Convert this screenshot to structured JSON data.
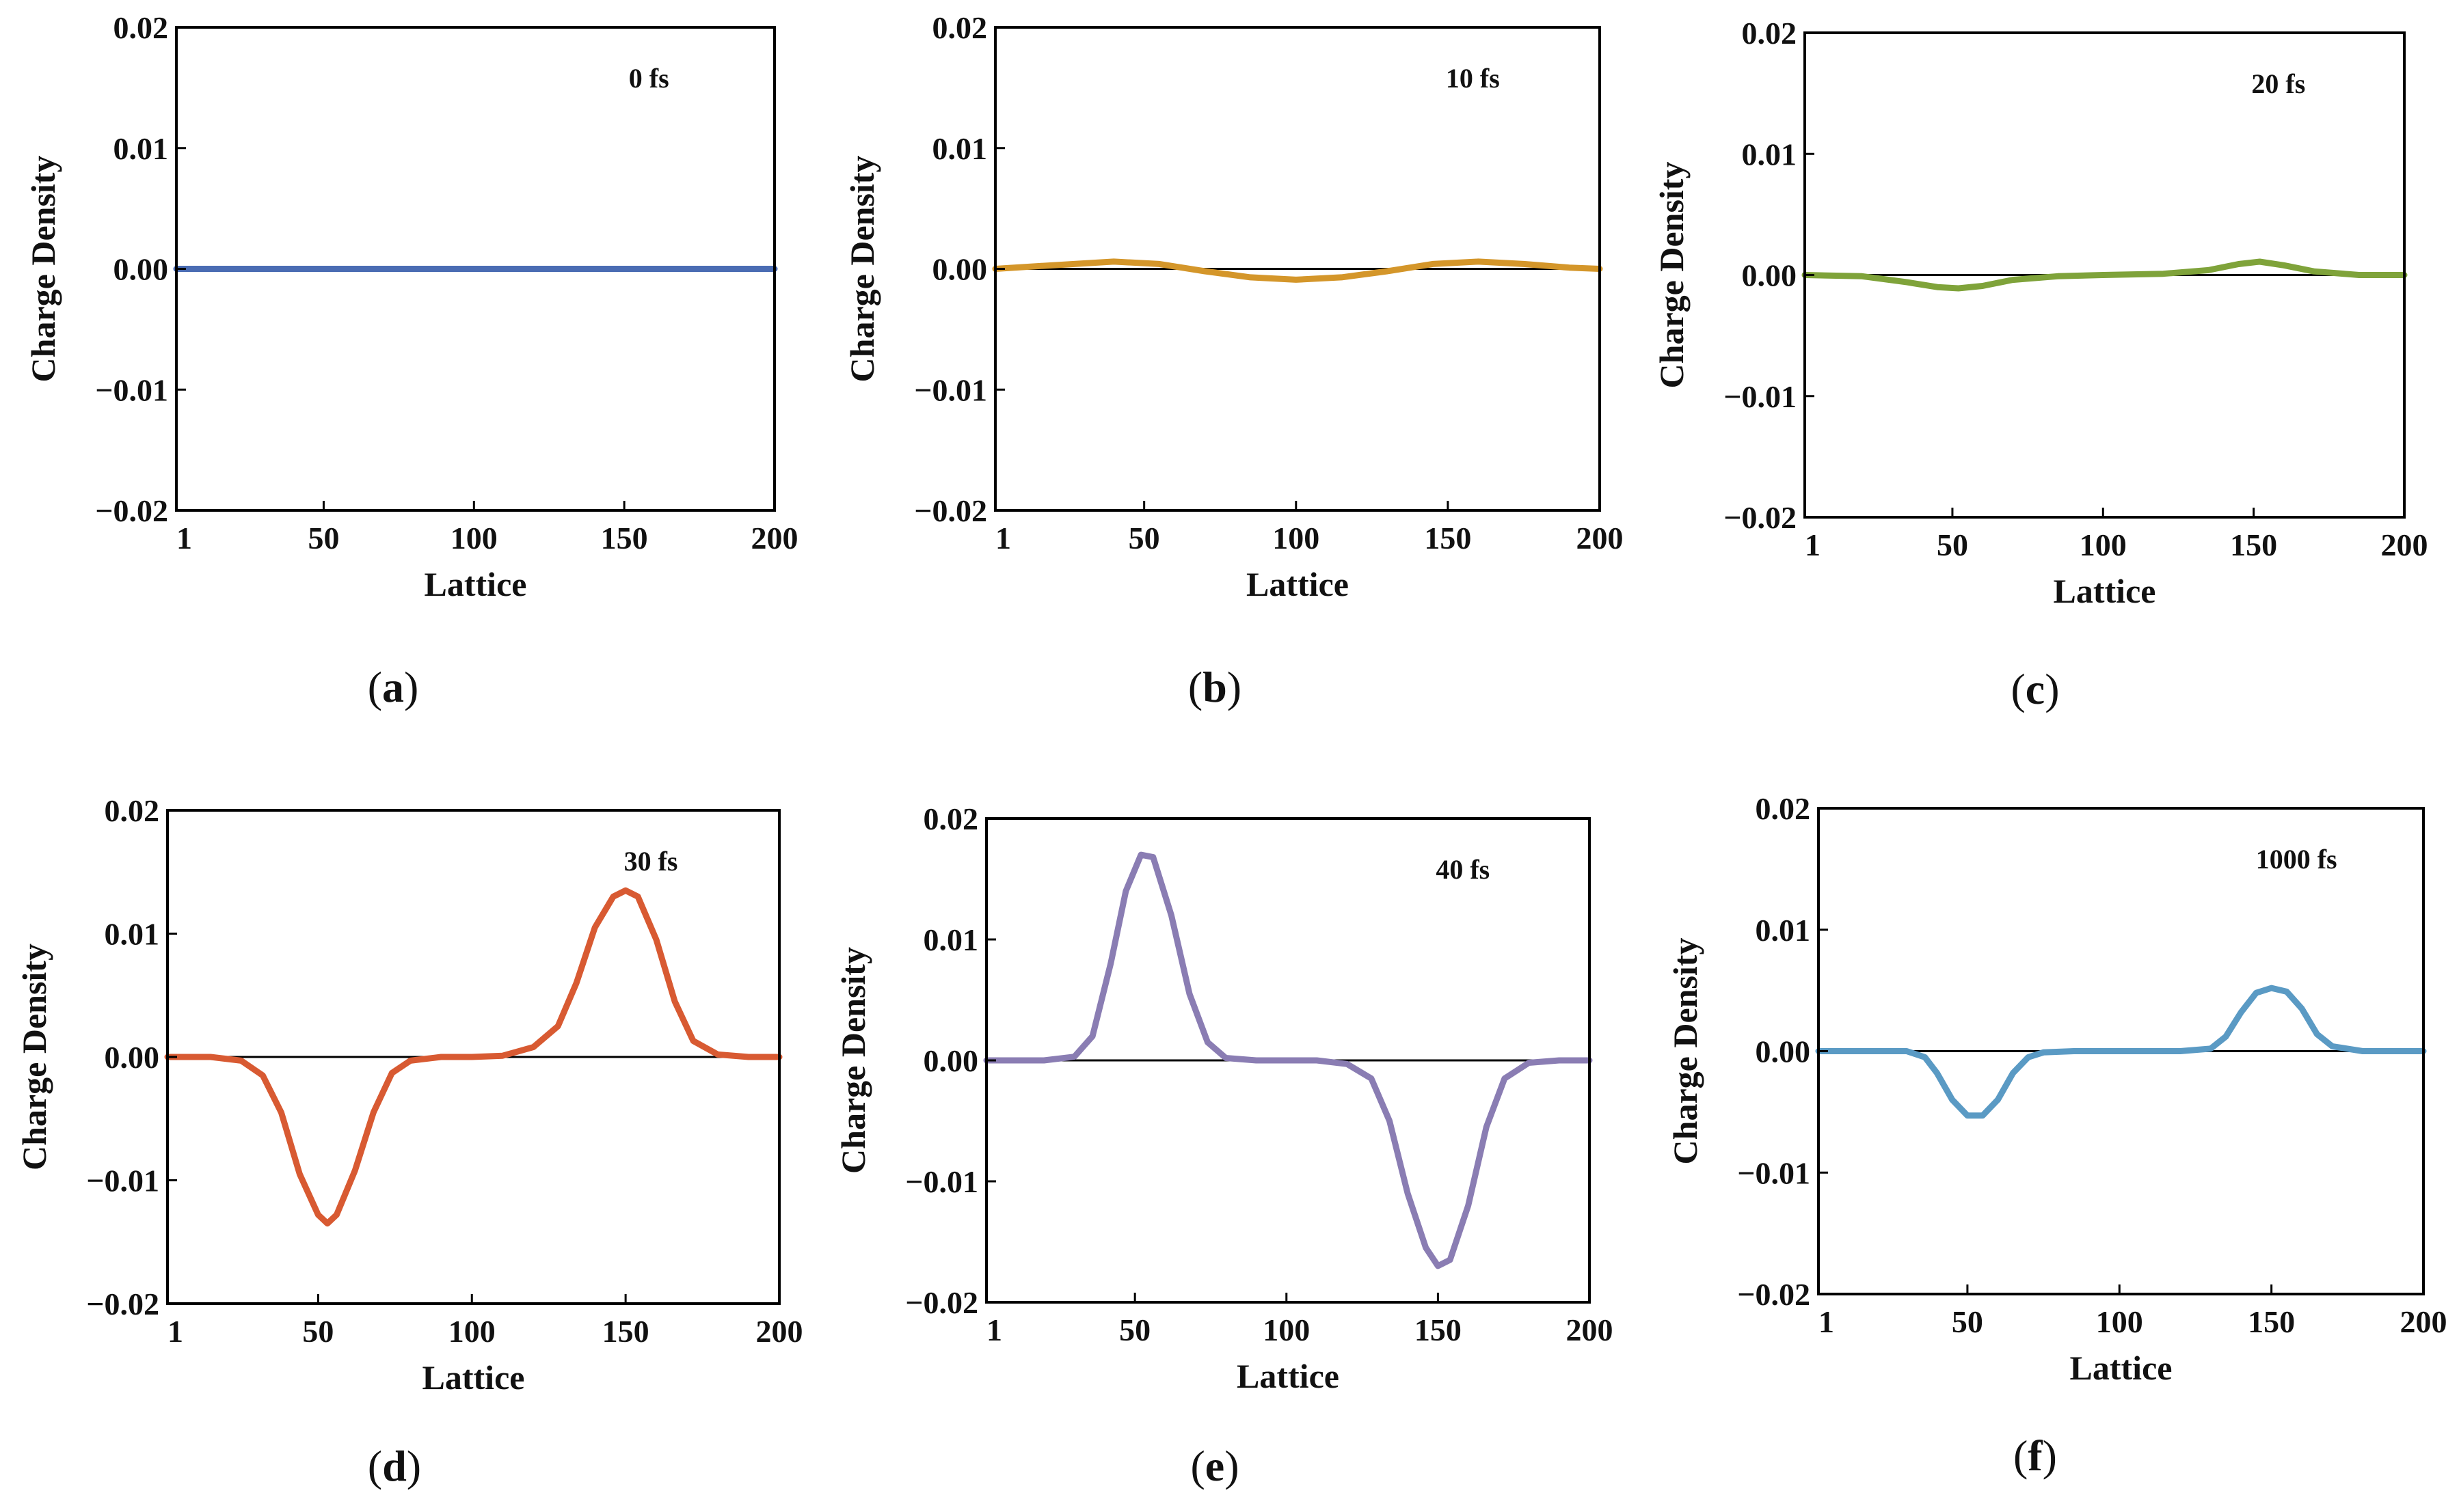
{
  "figure": {
    "ncols": 3,
    "nrows": 2
  },
  "chart_data": [
    {
      "type": "line",
      "panel_label": "(a)",
      "annotation": "0 fs",
      "xlabel": "Lattice",
      "ylabel": "Charge Density",
      "xlim": [
        1,
        200
      ],
      "ylim": [
        -0.02,
        0.02
      ],
      "xticks": [
        "1",
        "50",
        "100",
        "150",
        "200"
      ],
      "yticks": [
        "−0.02",
        "−0.01",
        "0.00",
        "0.01",
        "0.02"
      ],
      "color": "#4a6cb3",
      "series": [
        {
          "name": "0 fs",
          "x": [
            1,
            200
          ],
          "y": [
            0,
            0
          ]
        }
      ],
      "baseline": 0
    },
    {
      "type": "line",
      "panel_label": "(b)",
      "annotation": "10 fs",
      "xlabel": "Lattice",
      "ylabel": "Charge Density",
      "xlim": [
        1,
        200
      ],
      "ylim": [
        -0.02,
        0.02
      ],
      "xticks": [
        "1",
        "50",
        "100",
        "150",
        "200"
      ],
      "yticks": [
        "−0.02",
        "−0.01",
        "0.00",
        "0.01",
        "0.02"
      ],
      "color": "#d4962a",
      "series": [
        {
          "name": "10 fs",
          "x": [
            1,
            20,
            40,
            55,
            70,
            85,
            100,
            115,
            130,
            145,
            160,
            175,
            190,
            200
          ],
          "y": [
            0.0,
            0.0003,
            0.0006,
            0.0004,
            -0.0002,
            -0.0007,
            -0.0009,
            -0.0007,
            -0.0002,
            0.0004,
            0.0006,
            0.0004,
            0.0001,
            0.0
          ]
        }
      ],
      "baseline": 0
    },
    {
      "type": "line",
      "panel_label": "(c)",
      "annotation": "20 fs",
      "xlabel": "Lattice",
      "ylabel": "Charge Density",
      "xlim": [
        1,
        200
      ],
      "ylim": [
        -0.02,
        0.02
      ],
      "xticks": [
        "1",
        "50",
        "100",
        "150",
        "200"
      ],
      "yticks": [
        "−0.02",
        "−0.01",
        "0.00",
        "0.01",
        "0.02"
      ],
      "color": "#7fa33a",
      "series": [
        {
          "name": "20 fs",
          "x": [
            1,
            20,
            35,
            45,
            52,
            60,
            70,
            85,
            100,
            120,
            135,
            145,
            152,
            160,
            170,
            185,
            200
          ],
          "y": [
            0.0,
            -0.0001,
            -0.0006,
            -0.001,
            -0.0011,
            -0.0009,
            -0.0004,
            -0.0001,
            0.0,
            0.0001,
            0.0004,
            0.0009,
            0.0011,
            0.0008,
            0.0003,
            0.0,
            0.0
          ]
        }
      ],
      "baseline": 0
    },
    {
      "type": "line",
      "panel_label": "(d)",
      "annotation": "30 fs",
      "xlabel": "Lattice",
      "ylabel": "Charge Density",
      "xlim": [
        1,
        200
      ],
      "ylim": [
        -0.02,
        0.02
      ],
      "xticks": [
        "1",
        "50",
        "100",
        "150",
        "200"
      ],
      "yticks": [
        "−0.02",
        "−0.01",
        "0.00",
        "0.01",
        "0.02"
      ],
      "color": "#d85a32",
      "series": [
        {
          "name": "30 fs",
          "x": [
            1,
            15,
            25,
            32,
            38,
            44,
            50,
            53,
            56,
            62,
            68,
            74,
            80,
            90,
            100,
            110,
            120,
            128,
            134,
            140,
            146,
            150,
            154,
            160,
            166,
            172,
            180,
            190,
            200
          ],
          "y": [
            0.0,
            0.0,
            -0.0003,
            -0.0015,
            -0.0045,
            -0.0095,
            -0.0128,
            -0.0135,
            -0.0128,
            -0.0092,
            -0.0045,
            -0.0013,
            -0.0003,
            0.0,
            0.0,
            0.0001,
            0.0008,
            0.0025,
            0.006,
            0.0105,
            0.013,
            0.0135,
            0.013,
            0.0095,
            0.0045,
            0.0013,
            0.0002,
            0.0,
            0.0
          ]
        }
      ],
      "baseline": 0
    },
    {
      "type": "line",
      "panel_label": "(e)",
      "annotation": "40 fs",
      "xlabel": "Lattice",
      "ylabel": "Charge Density",
      "xlim": [
        1,
        200
      ],
      "ylim": [
        -0.02,
        0.02
      ],
      "xticks": [
        "1",
        "50",
        "100",
        "150",
        "200"
      ],
      "yticks": [
        "−0.02",
        "−0.01",
        "0.00",
        "0.01",
        "0.02"
      ],
      "color": "#8a7db3",
      "series": [
        {
          "name": "40 fs",
          "x": [
            1,
            20,
            30,
            36,
            42,
            47,
            52,
            56,
            62,
            68,
            74,
            80,
            90,
            100,
            110,
            120,
            128,
            134,
            140,
            146,
            150,
            154,
            160,
            166,
            172,
            180,
            190,
            200
          ],
          "y": [
            0.0,
            0.0,
            0.0003,
            0.002,
            0.008,
            0.014,
            0.017,
            0.0168,
            0.012,
            0.0055,
            0.0015,
            0.0002,
            0.0,
            0.0,
            0.0,
            -0.0003,
            -0.0015,
            -0.005,
            -0.011,
            -0.0155,
            -0.017,
            -0.0165,
            -0.012,
            -0.0055,
            -0.0015,
            -0.0002,
            0.0,
            0.0
          ]
        }
      ],
      "baseline": 0
    },
    {
      "type": "line",
      "panel_label": "(f)",
      "annotation": "1000 fs",
      "xlabel": "Lattice",
      "ylabel": "Charge Density",
      "xlim": [
        1,
        200
      ],
      "ylim": [
        -0.02,
        0.02
      ],
      "xticks": [
        "1",
        "50",
        "100",
        "150",
        "200"
      ],
      "yticks": [
        "−0.02",
        "−0.01",
        "0.00",
        "0.01",
        "0.02"
      ],
      "color": "#5a9ac4",
      "series": [
        {
          "name": "1000 fs",
          "x": [
            1,
            20,
            30,
            36,
            40,
            45,
            50,
            55,
            60,
            65,
            70,
            75,
            85,
            100,
            120,
            130,
            135,
            140,
            145,
            150,
            155,
            160,
            165,
            170,
            180,
            190,
            200
          ],
          "y": [
            0.0,
            0.0,
            0.0,
            -0.0005,
            -0.0018,
            -0.004,
            -0.0053,
            -0.0053,
            -0.004,
            -0.0018,
            -0.0005,
            -0.0001,
            0.0,
            0.0,
            0.0,
            0.0002,
            0.0012,
            0.0032,
            0.0048,
            0.0052,
            0.0049,
            0.0035,
            0.0014,
            0.0004,
            0.0,
            0.0,
            0.0
          ]
        }
      ],
      "baseline": 0
    }
  ]
}
